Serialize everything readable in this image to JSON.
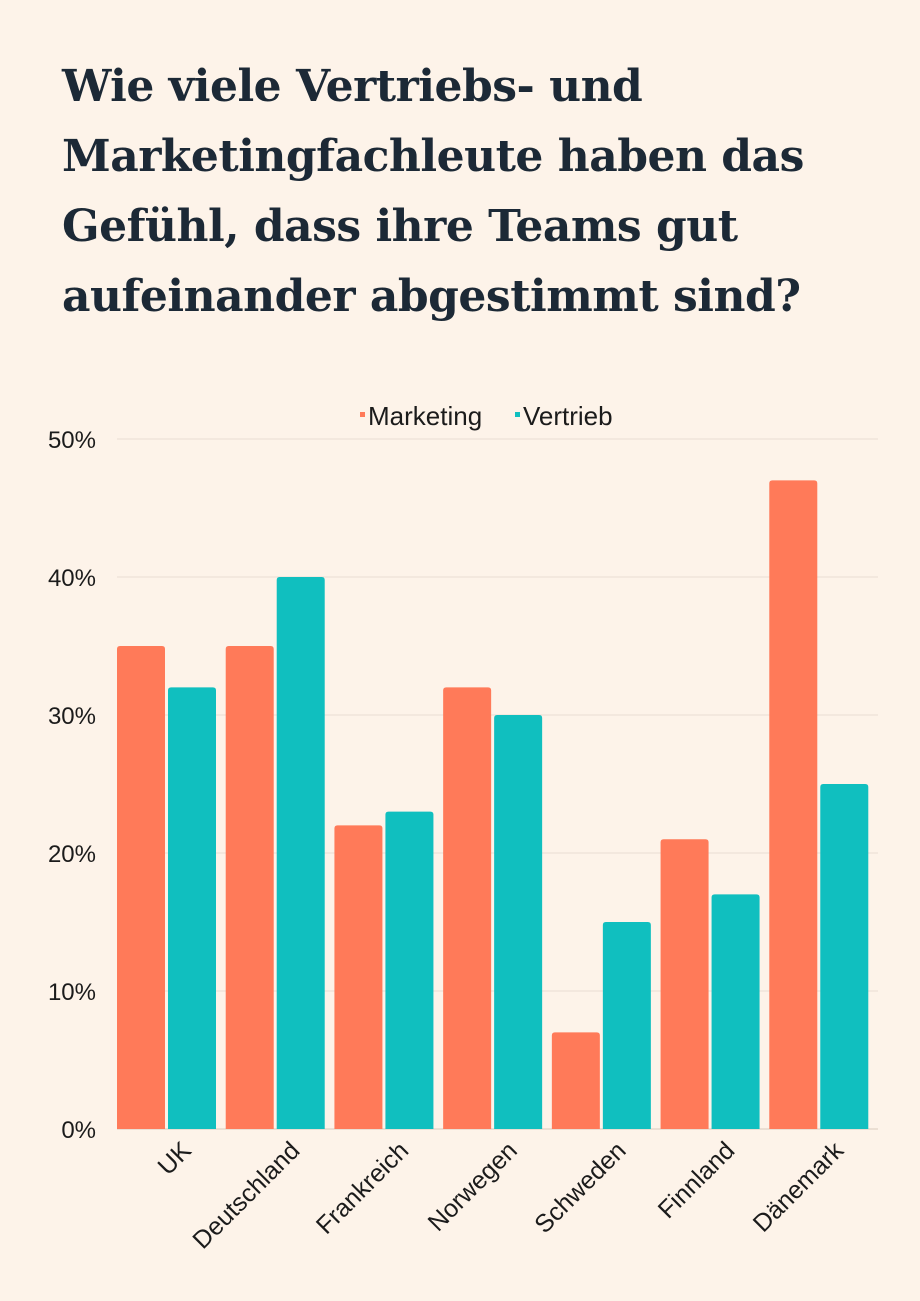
{
  "title": "Wie viele Vertriebs- und Marketingfachleute haben das Gefühl, dass ihre Teams gut aufeinander abgestimmt sind?",
  "colors": {
    "background": "#fdf3e9",
    "marketing": "#ff7a59",
    "vertrieb": "#10bfbf",
    "grid": "#e9ddd2",
    "title": "#1c2936"
  },
  "chart_data": {
    "type": "bar",
    "categories": [
      "UK",
      "Deutschland",
      "Frankreich",
      "Norwegen",
      "Schweden",
      "Finnland",
      "Dänemark"
    ],
    "series": [
      {
        "name": "Marketing",
        "values": [
          35,
          35,
          22,
          32,
          7,
          21,
          47
        ]
      },
      {
        "name": "Vertrieb",
        "values": [
          32,
          40,
          23,
          30,
          15,
          17,
          25
        ]
      }
    ],
    "ylim": [
      0,
      50
    ],
    "yticks": [
      0,
      10,
      20,
      30,
      40,
      50
    ],
    "yticklabels": [
      "0%",
      "10%",
      "20%",
      "30%",
      "40%",
      "50%"
    ],
    "xlabel": "",
    "ylabel": "",
    "legend": "top-center",
    "grid": true
  }
}
